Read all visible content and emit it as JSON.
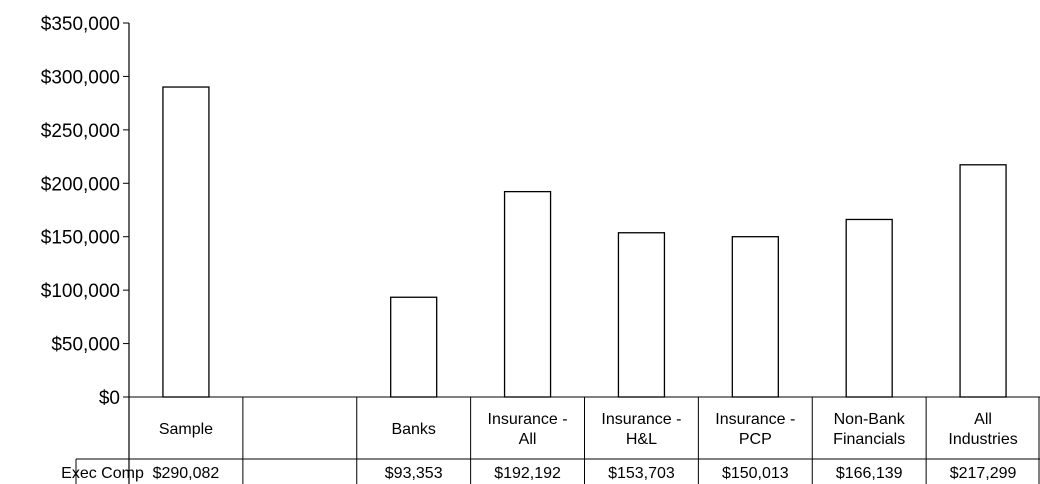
{
  "chart_data": {
    "type": "bar",
    "categories": [
      [
        "Sample"
      ],
      [
        ""
      ],
      [
        "Banks"
      ],
      [
        "Insurance -",
        "All"
      ],
      [
        "Insurance -",
        "H&L"
      ],
      [
        "Insurance -",
        "PCP"
      ],
      [
        "Non-Bank",
        "Financials"
      ],
      [
        "All",
        "Industries"
      ]
    ],
    "series": [
      {
        "name": "Exec Comp",
        "values": [
          290082,
          null,
          93353,
          192192,
          153703,
          150013,
          166139,
          217299
        ],
        "labels": [
          "$290,082",
          "",
          "$93,353",
          "$192,192",
          "$153,703",
          "$150,013",
          "$166,139",
          "$217,299"
        ]
      }
    ],
    "ylim": [
      0,
      350000
    ],
    "yticks": [
      0,
      50000,
      100000,
      150000,
      200000,
      250000,
      300000,
      350000
    ],
    "ytick_labels": [
      "$0",
      "$50,000",
      "$100,000",
      "$150,000",
      "$200,000",
      "$250,000",
      "$300,000",
      "$350,000"
    ],
    "data_table": true,
    "grid": false,
    "colors": {
      "bar_fill": "#ffffff",
      "bar_stroke": "#000000"
    }
  }
}
